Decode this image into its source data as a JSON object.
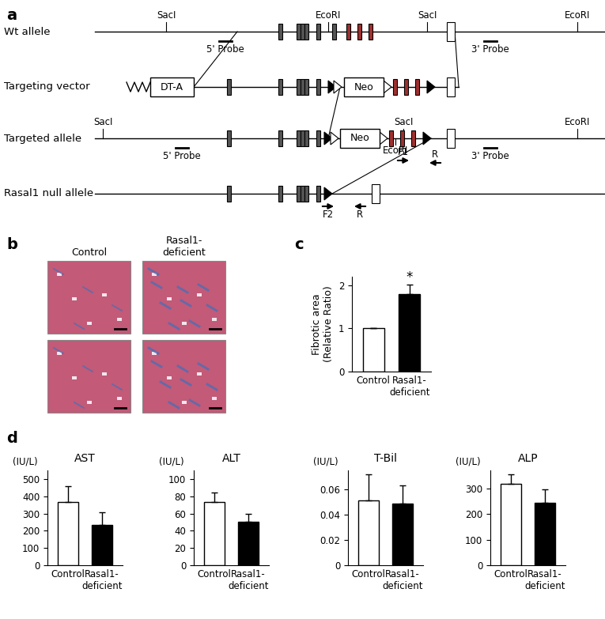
{
  "panel_labels": [
    "a",
    "b",
    "c",
    "d"
  ],
  "diagram": {
    "rows": [
      {
        "label": "Wt allele",
        "sites": [
          "SacI",
          "EcoRI",
          "SacI",
          "EcoRI"
        ],
        "probes": [
          "5' Probe",
          "3' Probe"
        ]
      },
      {
        "label": "Targeting vector",
        "cassettes": [
          "DT-A",
          "Neo"
        ]
      },
      {
        "label": "Targeted allele",
        "sites": [
          "SacI",
          "SacI",
          "EcoRI",
          "EcoRI"
        ],
        "probes": [
          "5' Probe",
          "3' Probe"
        ],
        "primers": [
          "F1",
          "R"
        ]
      },
      {
        "label": "Rasal1 null allele",
        "primers": [
          "F2",
          "R"
        ]
      }
    ]
  },
  "micrographs": {
    "columns": [
      "Control",
      "Rasal1-\ndeficient"
    ]
  },
  "chart_data": [
    {
      "type": "bar",
      "ylabel": "Fibrotic area\n(Relative Ratio)",
      "categories": [
        "Control",
        "Rasal1-\ndeficient"
      ],
      "values": [
        1,
        1.8
      ],
      "errors": [
        0,
        0.22
      ],
      "colors": [
        "#ffffff",
        "#000000"
      ],
      "ylim": [
        0,
        2.2
      ],
      "yticks": [
        0,
        1,
        2
      ],
      "annotations": [
        {
          "text": "*",
          "category": 1
        }
      ]
    },
    {
      "type": "bar",
      "title": "AST",
      "ylabel": "(IU/L)",
      "categories": [
        "Control",
        "Rasal1-\ndeficient"
      ],
      "values": [
        365,
        235
      ],
      "errors": [
        95,
        70
      ],
      "colors": [
        "#ffffff",
        "#000000"
      ],
      "ylim": [
        0,
        550
      ],
      "yticks": [
        0,
        100,
        200,
        300,
        400,
        500
      ]
    },
    {
      "type": "bar",
      "title": "ALT",
      "ylabel": "(IU/L)",
      "categories": [
        "Control",
        "Rasal1-\ndeficient"
      ],
      "values": [
        73,
        50
      ],
      "errors": [
        11,
        10
      ],
      "colors": [
        "#ffffff",
        "#000000"
      ],
      "ylim": [
        0,
        110
      ],
      "yticks": [
        0,
        20,
        40,
        60,
        80,
        100
      ]
    },
    {
      "type": "bar",
      "title": "T-Bil",
      "ylabel": "(IU/L)",
      "categories": [
        "Control",
        "Rasal1-\ndeficient"
      ],
      "values": [
        0.051,
        0.049
      ],
      "errors": [
        0.021,
        0.014
      ],
      "colors": [
        "#ffffff",
        "#000000"
      ],
      "ylim": [
        0,
        0.075
      ],
      "yticks": [
        0,
        0.02,
        0.04,
        0.06
      ]
    },
    {
      "type": "bar",
      "title": "ALP",
      "ylabel": "(IU/L)",
      "categories": [
        "Control",
        "Rasal1-\ndeficient"
      ],
      "values": [
        318,
        245
      ],
      "errors": [
        38,
        52
      ],
      "colors": [
        "#ffffff",
        "#000000"
      ],
      "ylim": [
        0,
        370
      ],
      "yticks": [
        0,
        100,
        200,
        300
      ]
    }
  ]
}
